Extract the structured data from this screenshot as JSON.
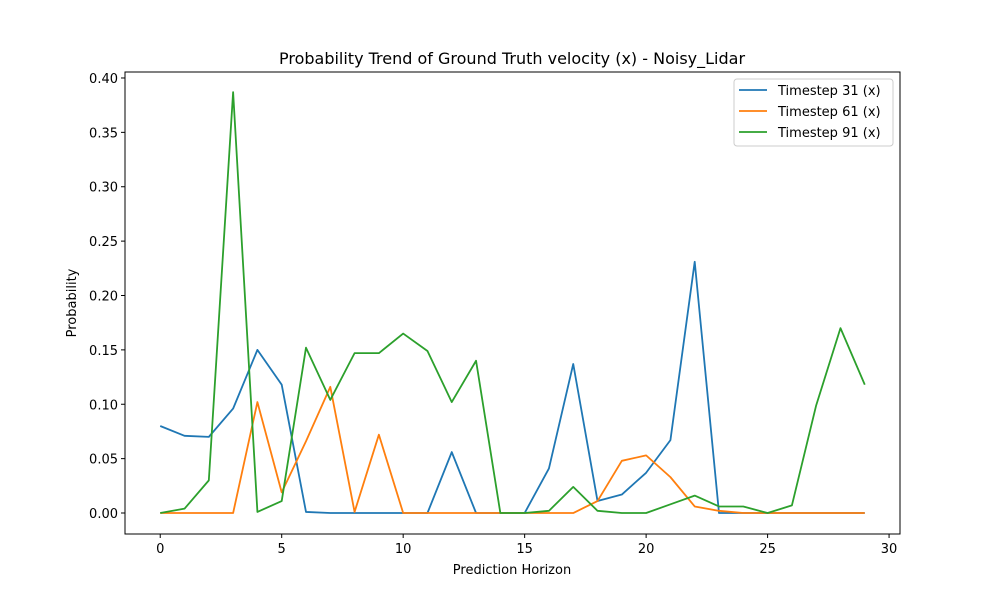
{
  "chart_data": {
    "type": "line",
    "title": "Probability Trend of Ground Truth velocity (x) - Noisy_Lidar",
    "xlabel": "Prediction Horizon",
    "ylabel": "Probability",
    "xlim": [
      -1.45,
      30.45
    ],
    "ylim": [
      -0.0193,
      0.4055
    ],
    "xticks": [
      0,
      5,
      10,
      15,
      20,
      25,
      30
    ],
    "xtick_labels": [
      "0",
      "5",
      "10",
      "15",
      "20",
      "25",
      "30"
    ],
    "yticks": [
      0.0,
      0.05,
      0.1,
      0.15,
      0.2,
      0.25,
      0.3,
      0.35,
      0.4
    ],
    "ytick_labels": [
      "0.00",
      "0.05",
      "0.10",
      "0.15",
      "0.20",
      "0.25",
      "0.30",
      "0.35",
      "0.40"
    ],
    "grid": false,
    "legend_position": "top-right",
    "x": [
      0,
      1,
      2,
      3,
      4,
      5,
      6,
      7,
      8,
      9,
      10,
      11,
      12,
      13,
      14,
      15,
      16,
      17,
      18,
      19,
      20,
      21,
      22,
      23,
      24,
      25,
      26,
      27,
      28,
      29
    ],
    "series": [
      {
        "name": "Timestep 31 (x)",
        "color": "#1f77b4",
        "values": [
          0.08,
          0.071,
          0.07,
          0.096,
          0.15,
          0.118,
          0.001,
          0.0,
          0.0,
          0.0,
          0.0,
          0.0,
          0.056,
          0.0,
          0.0,
          0.0,
          0.041,
          0.137,
          0.011,
          0.017,
          0.037,
          0.067,
          0.231,
          0.0,
          0.0,
          0.0,
          0.0,
          0.0,
          0.0,
          0.0
        ]
      },
      {
        "name": "Timestep 61 (x)",
        "color": "#ff7f0e",
        "values": [
          0.0,
          0.0,
          0.0,
          0.0,
          0.102,
          0.019,
          0.066,
          0.116,
          0.001,
          0.072,
          0.0,
          0.0,
          0.0,
          0.0,
          0.0,
          0.0,
          0.0,
          0.0,
          0.011,
          0.048,
          0.053,
          0.033,
          0.006,
          0.002,
          0.0,
          0.0,
          0.0,
          0.0,
          0.0,
          0.0
        ]
      },
      {
        "name": "Timestep 91 (x)",
        "color": "#2ca02c",
        "values": [
          0.0,
          0.004,
          0.03,
          0.387,
          0.001,
          0.011,
          0.152,
          0.104,
          0.147,
          0.147,
          0.165,
          0.149,
          0.102,
          0.14,
          0.0,
          0.0,
          0.002,
          0.024,
          0.002,
          0.0,
          0.0,
          0.008,
          0.016,
          0.006,
          0.006,
          0.0,
          0.007,
          0.099,
          0.17,
          0.118
        ]
      }
    ]
  }
}
